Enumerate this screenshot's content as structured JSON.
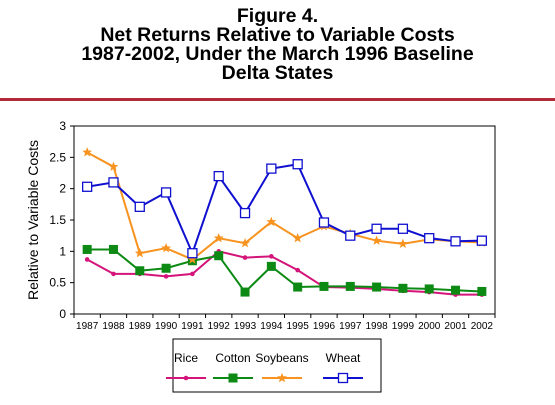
{
  "title_lines": [
    "Figure 4.",
    "Net Returns Relative to Variable Costs",
    "1987-2002, Under the March 1996 Baseline",
    "Delta States"
  ],
  "colors": {
    "rule": "#b22a3a",
    "Rice": "#d4147a",
    "Cotton": "#0c8a14",
    "Soybeans": "#f7931e",
    "Wheat": "#1010d0"
  },
  "chart_data": {
    "type": "line",
    "ylabel": "Relative to Variable Costs",
    "xlabel": "",
    "ylim": [
      0,
      3
    ],
    "yticks": [
      "0",
      "0.5",
      "1",
      "1.5",
      "2",
      "2.5",
      "3"
    ],
    "x": [
      "1987",
      "1988",
      "1989",
      "1990",
      "1991",
      "1992",
      "1993",
      "1994",
      "1995",
      "1996",
      "1997",
      "1998",
      "1999",
      "2000",
      "2001",
      "2002"
    ],
    "legend_position": "bottom",
    "grid": false,
    "series": [
      {
        "name": "Rice",
        "marker": "dot",
        "values": [
          0.87,
          0.64,
          0.64,
          0.6,
          0.64,
          1.0,
          0.9,
          0.92,
          0.7,
          0.43,
          0.42,
          0.4,
          0.37,
          0.35,
          0.31,
          0.31
        ]
      },
      {
        "name": "Cotton",
        "marker": "filled-square",
        "values": [
          1.03,
          1.03,
          0.69,
          0.73,
          0.85,
          0.93,
          0.35,
          0.76,
          0.43,
          0.44,
          0.44,
          0.43,
          0.41,
          0.4,
          0.38,
          0.36
        ]
      },
      {
        "name": "Soybeans",
        "marker": "star",
        "values": [
          2.58,
          2.35,
          0.97,
          1.05,
          0.87,
          1.21,
          1.13,
          1.47,
          1.21,
          1.4,
          1.28,
          1.17,
          1.12,
          1.19,
          1.16,
          1.14
        ]
      },
      {
        "name": "Wheat",
        "marker": "open-square",
        "values": [
          2.03,
          2.1,
          1.71,
          1.94,
          0.97,
          2.2,
          1.61,
          2.32,
          2.39,
          1.46,
          1.25,
          1.36,
          1.36,
          1.21,
          1.16,
          1.17
        ]
      }
    ]
  }
}
